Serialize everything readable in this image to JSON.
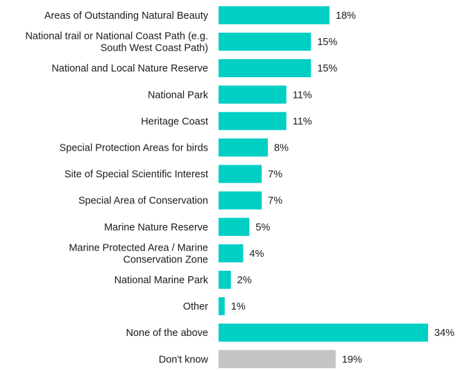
{
  "chart_data": {
    "type": "bar",
    "orientation": "horizontal",
    "categories": [
      [
        "Areas of Outstanding Natural Beauty"
      ],
      [
        "National trail or National Coast Path (e.g.",
        "South West Coast Path)"
      ],
      [
        "National and Local Nature Reserve"
      ],
      [
        "National Park"
      ],
      [
        "Heritage Coast"
      ],
      [
        "Special Protection Areas for birds"
      ],
      [
        "Site of Special Scientific Interest"
      ],
      [
        "Special Area of Conservation"
      ],
      [
        "Marine Nature Reserve"
      ],
      [
        "Marine Protected Area / Marine",
        "Conservation Zone"
      ],
      [
        "National Marine Park"
      ],
      [
        "Other"
      ],
      [
        "None of the above"
      ],
      [
        "Don't know"
      ]
    ],
    "values": [
      18,
      15,
      15,
      11,
      11,
      8,
      7,
      7,
      5,
      4,
      2,
      1,
      34,
      19
    ],
    "value_labels": [
      "18%",
      "15%",
      "15%",
      "11%",
      "11%",
      "8%",
      "7%",
      "7%",
      "5%",
      "4%",
      "2%",
      "1%",
      "34%",
      "19%"
    ],
    "bar_colors": [
      "#00cfc4",
      "#00cfc4",
      "#00cfc4",
      "#00cfc4",
      "#00cfc4",
      "#00cfc4",
      "#00cfc4",
      "#00cfc4",
      "#00cfc4",
      "#00cfc4",
      "#00cfc4",
      "#00cfc4",
      "#00cfc4",
      "#c4c4c4"
    ],
    "xlim": [
      0,
      34
    ],
    "title": "",
    "xlabel": "",
    "ylabel": "",
    "grid": false,
    "legend": "none"
  }
}
